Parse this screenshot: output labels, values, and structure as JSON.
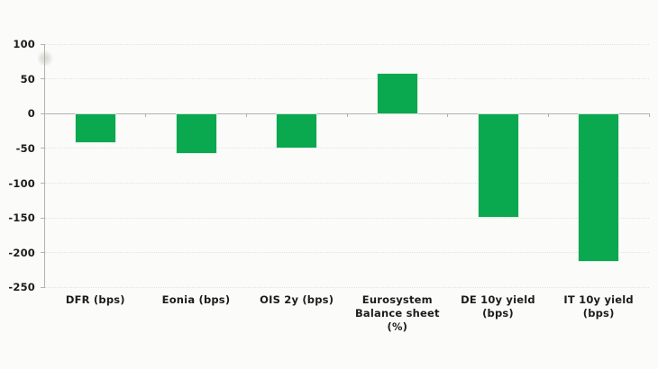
{
  "window": {
    "background_color": "#fbfcf9"
  },
  "chart_data": {
    "type": "bar",
    "title": "",
    "xlabel": "",
    "ylabel": "",
    "categories": [
      "DFR (bps)",
      "Eonia (bps)",
      "OIS 2y (bps)",
      "Eurosystem\nBalance sheet\n(%)",
      "DE 10y yield\n(bps)",
      "IT 10y yield (bps)"
    ],
    "values": [
      -40,
      -56,
      -48,
      58,
      -148,
      -211
    ],
    "ylim": [
      -250,
      100
    ],
    "yticks": [
      100,
      50,
      0,
      -50,
      -100,
      -150,
      -200,
      -250
    ],
    "grid": true,
    "legend_position": "none",
    "bar_color": "#0aa84f",
    "bar_edge_color": "#d6eedf",
    "gridline_color": "#e4e4df",
    "axis_color": "#b3b3ae",
    "text_color": "#1c1c1c"
  }
}
